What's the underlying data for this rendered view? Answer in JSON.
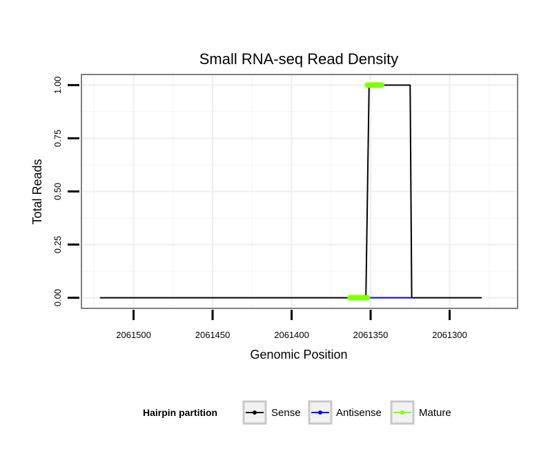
{
  "chart_data": {
    "type": "line",
    "title": "Small RNA-seq Read Density",
    "xlabel": "Genomic Position",
    "ylabel": "Total Reads",
    "x_reversed": true,
    "xlim": [
      2061533,
      2061257
    ],
    "ylim": [
      -0.05,
      1.05
    ],
    "x_ticks": [
      2061500,
      2061450,
      2061400,
      2061350,
      2061300
    ],
    "x_tick_labels": [
      "2061500",
      "2061450",
      "2061400",
      "2061350",
      "2061300"
    ],
    "y_ticks": [
      0,
      0.25,
      0.5,
      0.75,
      1
    ],
    "y_tick_labels": [
      "0.00",
      "0.25",
      "0.50",
      "0.75",
      "1.00"
    ],
    "grid": true,
    "legend": {
      "title": "Hairpin partition",
      "position": "bottom",
      "entries": [
        "Sense",
        "Antisense",
        "Mature"
      ]
    },
    "series": [
      {
        "name": "Sense",
        "color": "#000000",
        "points": [
          [
            2061521,
            0
          ],
          [
            2061353,
            0
          ],
          [
            2061351,
            1
          ],
          [
            2061325,
            1
          ],
          [
            2061324,
            0
          ],
          [
            2061280,
            0
          ]
        ]
      },
      {
        "name": "Antisense",
        "color": "#0000ff",
        "points": [
          [
            2061353,
            0
          ],
          [
            2061324,
            0
          ]
        ]
      },
      {
        "name": "Mature",
        "color": "#7fff00",
        "points": [
          [
            2061363,
            0
          ],
          [
            2061352,
            0
          ]
        ],
        "points2": [
          [
            2061352,
            1
          ],
          [
            2061343,
            1
          ]
        ]
      }
    ]
  }
}
